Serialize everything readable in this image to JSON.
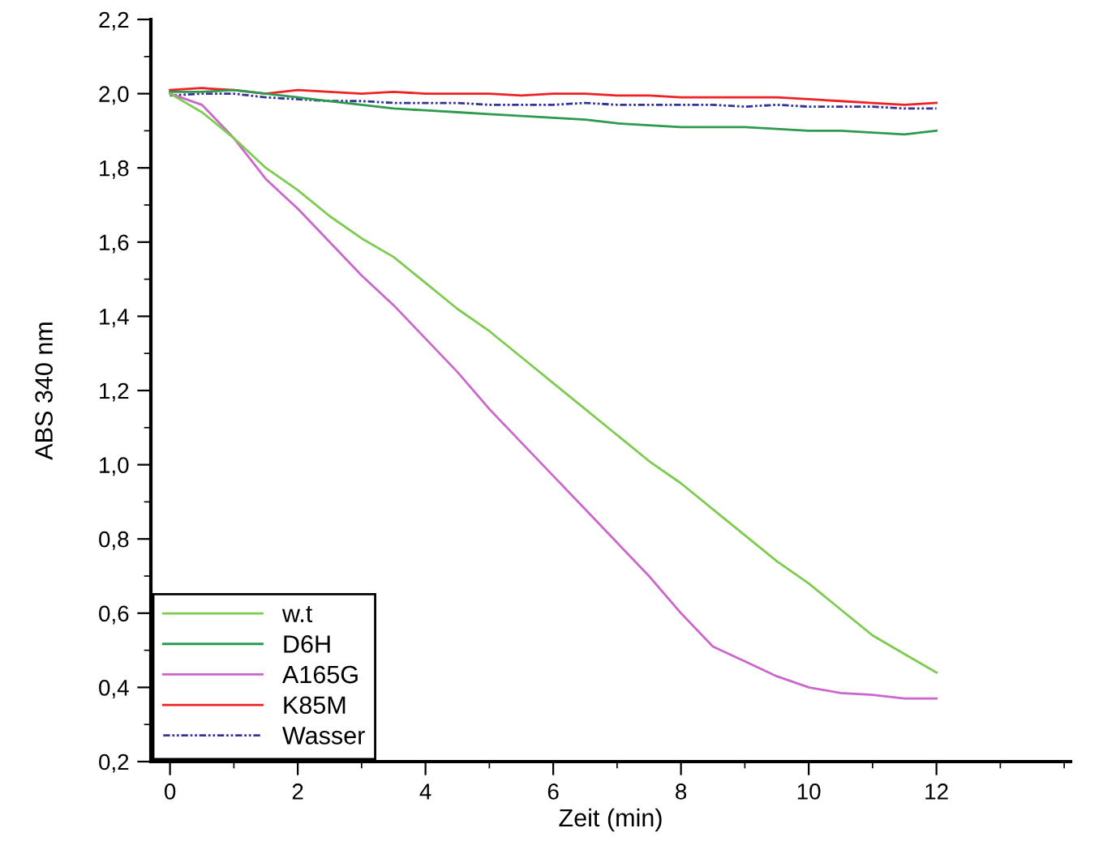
{
  "chart_data": {
    "type": "line",
    "xlabel": "Zeit (min)",
    "ylabel": "ABS 340 nm",
    "x": [
      0,
      0.5,
      1,
      1.5,
      2,
      2.5,
      3,
      3.5,
      4,
      4.5,
      5,
      5.5,
      6,
      6.5,
      7,
      7.5,
      8,
      8.5,
      9,
      9.5,
      10,
      10.5,
      11,
      11.5,
      12
    ],
    "series": [
      {
        "name": "w.t",
        "color": "#7dcb4f",
        "line_style": "solid",
        "values": [
          2.0,
          1.95,
          1.88,
          1.8,
          1.74,
          1.67,
          1.61,
          1.56,
          1.49,
          1.42,
          1.36,
          1.29,
          1.22,
          1.15,
          1.08,
          1.01,
          0.95,
          0.88,
          0.81,
          0.74,
          0.68,
          0.61,
          0.54,
          0.49,
          0.44
        ]
      },
      {
        "name": "D6H",
        "color": "#2e9a50",
        "line_style": "solid",
        "values": [
          2.005,
          2.005,
          2.01,
          2.0,
          1.99,
          1.98,
          1.97,
          1.96,
          1.955,
          1.95,
          1.945,
          1.94,
          1.935,
          1.93,
          1.92,
          1.915,
          1.91,
          1.91,
          1.91,
          1.905,
          1.9,
          1.9,
          1.895,
          1.89,
          1.9
        ]
      },
      {
        "name": "A165G",
        "color": "#cc66cc",
        "line_style": "solid",
        "values": [
          2.0,
          1.97,
          1.88,
          1.77,
          1.69,
          1.6,
          1.51,
          1.43,
          1.34,
          1.25,
          1.15,
          1.06,
          0.97,
          0.88,
          0.79,
          0.7,
          0.6,
          0.51,
          0.47,
          0.43,
          0.4,
          0.385,
          0.38,
          0.37,
          0.37
        ]
      },
      {
        "name": "K85M",
        "color": "#ee2222",
        "line_style": "solid",
        "values": [
          2.01,
          2.015,
          2.01,
          2.0,
          2.01,
          2.005,
          2.0,
          2.005,
          2.0,
          2.0,
          2.0,
          1.995,
          2.0,
          2.0,
          1.995,
          1.995,
          1.99,
          1.99,
          1.99,
          1.99,
          1.985,
          1.98,
          1.975,
          1.97,
          1.975
        ]
      },
      {
        "name": "Wasser",
        "color": "#333399",
        "line_style": "dashdot",
        "values": [
          1.995,
          2.0,
          2.0,
          1.99,
          1.985,
          1.98,
          1.98,
          1.975,
          1.975,
          1.975,
          1.97,
          1.97,
          1.97,
          1.975,
          1.97,
          1.97,
          1.97,
          1.97,
          1.965,
          1.97,
          1.965,
          1.965,
          1.965,
          1.96,
          1.96
        ]
      }
    ],
    "xlim": [
      -0.3,
      14.1
    ],
    "xticks": [
      0,
      2,
      4,
      6,
      8,
      10,
      12
    ],
    "ylim": [
      0.2,
      2.2
    ],
    "yticks": [
      {
        "value": 0.2,
        "label": "0,2"
      },
      {
        "value": 0.4,
        "label": "0,4"
      },
      {
        "value": 0.6,
        "label": "0,6"
      },
      {
        "value": 0.8,
        "label": "0,8"
      },
      {
        "value": 1.0,
        "label": "1,0"
      },
      {
        "value": 1.2,
        "label": "1,2"
      },
      {
        "value": 1.4,
        "label": "1,4"
      },
      {
        "value": 1.6,
        "label": "1,6"
      },
      {
        "value": 1.8,
        "label": "1,8"
      },
      {
        "value": 2.0,
        "label": "2,0"
      },
      {
        "value": 2.2,
        "label": "2,2"
      }
    ],
    "grid": false,
    "legend": "bottom left",
    "marker": "none"
  }
}
